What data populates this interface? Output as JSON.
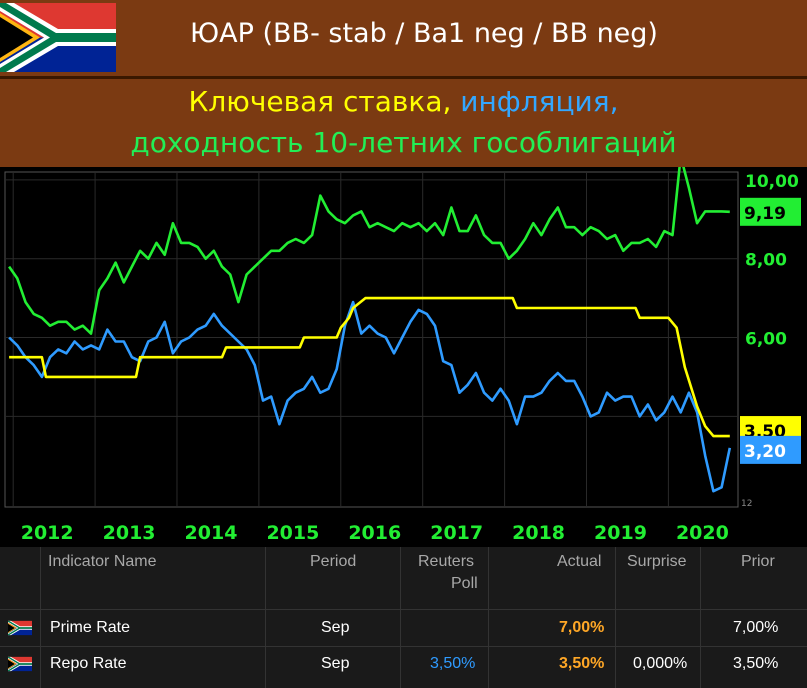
{
  "header": {
    "title": "ЮАР (BB- stab / Ba1 neg / BB neg)"
  },
  "subtitle": {
    "line1_part1": "Ключевая ставка,",
    "line1_part2": "инфляция,",
    "line2": "доходность 10-летних гособлигаций"
  },
  "colors": {
    "rate": "#ffff00",
    "inflation": "#2f9bff",
    "yield": "#22ee33"
  },
  "chart_data": {
    "type": "line",
    "x_ticks": [
      "2012",
      "2013",
      "2014",
      "2015",
      "2016",
      "2017",
      "2018",
      "2019",
      "2020"
    ],
    "y_ticks": [
      "10,00",
      "8,00",
      "6,00"
    ],
    "ylim": [
      1.7,
      10.2
    ],
    "xlim": [
      2011.9,
      2020.85
    ],
    "last_value_tags": [
      {
        "label": "9,19",
        "value": 9.19,
        "series": "yield"
      },
      {
        "label": "3,50",
        "value": 3.5,
        "series": "rate"
      },
      {
        "label": "3,20",
        "value": 3.2,
        "series": "inflation"
      }
    ],
    "small_label": "12",
    "series": [
      {
        "key": "yield",
        "x": [
          2011.95,
          2012.05,
          2012.15,
          2012.25,
          2012.35,
          2012.45,
          2012.55,
          2012.65,
          2012.75,
          2012.85,
          2012.95,
          2013.05,
          2013.15,
          2013.25,
          2013.35,
          2013.45,
          2013.55,
          2013.65,
          2013.75,
          2013.85,
          2013.95,
          2014.05,
          2014.15,
          2014.25,
          2014.35,
          2014.45,
          2014.55,
          2014.65,
          2014.75,
          2014.85,
          2014.95,
          2015.05,
          2015.15,
          2015.25,
          2015.35,
          2015.45,
          2015.55,
          2015.65,
          2015.75,
          2015.85,
          2015.95,
          2016.05,
          2016.15,
          2016.25,
          2016.35,
          2016.45,
          2016.55,
          2016.65,
          2016.75,
          2016.85,
          2016.95,
          2017.05,
          2017.15,
          2017.25,
          2017.35,
          2017.45,
          2017.55,
          2017.65,
          2017.75,
          2017.85,
          2017.95,
          2018.05,
          2018.15,
          2018.25,
          2018.35,
          2018.45,
          2018.55,
          2018.65,
          2018.75,
          2018.85,
          2018.95,
          2019.05,
          2019.15,
          2019.25,
          2019.35,
          2019.45,
          2019.55,
          2019.65,
          2019.75,
          2019.85,
          2019.95,
          2020.05,
          2020.15,
          2020.25,
          2020.35,
          2020.45,
          2020.55,
          2020.65,
          2020.75
        ],
        "values": [
          7.8,
          7.5,
          6.9,
          6.6,
          6.5,
          6.3,
          6.4,
          6.4,
          6.2,
          6.3,
          6.1,
          7.2,
          7.5,
          7.9,
          7.4,
          7.8,
          8.2,
          8.0,
          8.4,
          8.1,
          8.9,
          8.4,
          8.4,
          8.3,
          8.0,
          8.2,
          7.8,
          7.6,
          6.9,
          7.6,
          7.8,
          8.0,
          8.2,
          8.2,
          8.4,
          8.5,
          8.4,
          8.6,
          9.6,
          9.2,
          9.0,
          8.9,
          9.1,
          9.2,
          8.8,
          8.9,
          8.8,
          8.7,
          8.9,
          8.8,
          8.9,
          8.7,
          8.9,
          8.6,
          9.3,
          8.7,
          8.7,
          9.1,
          8.6,
          8.4,
          8.4,
          8.0,
          8.2,
          8.5,
          8.9,
          8.6,
          9.0,
          9.3,
          8.8,
          8.8,
          8.6,
          8.8,
          8.7,
          8.5,
          8.6,
          8.2,
          8.4,
          8.4,
          8.5,
          8.3,
          8.7,
          8.6,
          10.6,
          9.8,
          8.9,
          9.2,
          9.2,
          9.2,
          9.19
        ]
      },
      {
        "key": "rate",
        "x": [
          2011.95,
          2012.35,
          2012.4,
          2013.5,
          2013.55,
          2014.0,
          2014.05,
          2014.55,
          2014.6,
          2015.2,
          2015.25,
          2015.5,
          2015.55,
          2015.95,
          2016.0,
          2016.1,
          2016.15,
          2016.3,
          2016.35,
          2017.15,
          2017.2,
          2018.1,
          2018.15,
          2018.9,
          2018.95,
          2019.6,
          2019.65,
          2020.0,
          2020.1,
          2020.2,
          2020.35,
          2020.45,
          2020.55,
          2020.75
        ],
        "values": [
          5.5,
          5.5,
          5.0,
          5.0,
          5.5,
          5.5,
          5.5,
          5.5,
          5.75,
          5.75,
          5.75,
          5.75,
          6.0,
          6.0,
          6.25,
          6.5,
          6.75,
          7.0,
          7.0,
          7.0,
          7.0,
          7.0,
          6.75,
          6.75,
          6.75,
          6.75,
          6.5,
          6.5,
          6.25,
          5.25,
          4.25,
          3.75,
          3.5,
          3.5
        ]
      },
      {
        "key": "inflation",
        "x": [
          2011.95,
          2012.05,
          2012.15,
          2012.25,
          2012.35,
          2012.45,
          2012.55,
          2012.65,
          2012.75,
          2012.85,
          2012.95,
          2013.05,
          2013.15,
          2013.25,
          2013.35,
          2013.45,
          2013.55,
          2013.65,
          2013.75,
          2013.85,
          2013.95,
          2014.05,
          2014.15,
          2014.25,
          2014.35,
          2014.45,
          2014.55,
          2014.65,
          2014.75,
          2014.85,
          2014.95,
          2015.05,
          2015.15,
          2015.25,
          2015.35,
          2015.45,
          2015.55,
          2015.65,
          2015.75,
          2015.85,
          2015.95,
          2016.05,
          2016.15,
          2016.25,
          2016.35,
          2016.45,
          2016.55,
          2016.65,
          2016.75,
          2016.85,
          2016.95,
          2017.05,
          2017.15,
          2017.25,
          2017.35,
          2017.45,
          2017.55,
          2017.65,
          2017.75,
          2017.85,
          2017.95,
          2018.05,
          2018.15,
          2018.25,
          2018.35,
          2018.45,
          2018.55,
          2018.65,
          2018.75,
          2018.85,
          2018.95,
          2019.05,
          2019.15,
          2019.25,
          2019.35,
          2019.45,
          2019.55,
          2019.65,
          2019.75,
          2019.85,
          2019.95,
          2020.05,
          2020.15,
          2020.25,
          2020.35,
          2020.45,
          2020.55,
          2020.65,
          2020.75
        ],
        "values": [
          6.0,
          5.8,
          5.5,
          5.3,
          5.0,
          5.5,
          5.7,
          5.6,
          5.9,
          5.7,
          5.8,
          5.7,
          6.2,
          5.9,
          5.9,
          5.5,
          5.4,
          5.9,
          6.0,
          6.4,
          5.6,
          5.9,
          6.0,
          6.2,
          6.3,
          6.6,
          6.3,
          6.1,
          5.9,
          5.7,
          5.3,
          4.4,
          4.5,
          3.8,
          4.4,
          4.6,
          4.7,
          5.0,
          4.6,
          4.7,
          5.2,
          6.3,
          6.9,
          6.1,
          6.3,
          6.1,
          6.0,
          5.6,
          6.0,
          6.4,
          6.7,
          6.6,
          6.3,
          5.4,
          5.3,
          4.6,
          4.8,
          5.1,
          4.6,
          4.4,
          4.7,
          4.4,
          3.8,
          4.5,
          4.5,
          4.6,
          4.9,
          5.1,
          4.9,
          4.9,
          4.5,
          4.0,
          4.1,
          4.6,
          4.4,
          4.5,
          4.5,
          4.0,
          4.3,
          3.9,
          4.1,
          4.5,
          4.1,
          4.6,
          4.1,
          3.0,
          2.1,
          2.2,
          3.2
        ]
      }
    ]
  },
  "table": {
    "headers": {
      "name": "Indicator Name",
      "period": "Period",
      "poll_line1": "Reuters",
      "poll_line2": "Poll",
      "actual": "Actual",
      "surprise": "Surprise",
      "prior": "Prior"
    },
    "rows": [
      {
        "name": "Prime Rate",
        "period": "Sep",
        "poll": "",
        "actual": "7,00%",
        "surprise": "",
        "prior": "7,00%"
      },
      {
        "name": "Repo Rate",
        "period": "Sep",
        "poll": "3,50%",
        "actual": "3,50%",
        "surprise": "0,000%",
        "prior": "3,50%"
      }
    ],
    "actual_color": "#ffa726",
    "poll_color": "#2f9bff"
  }
}
